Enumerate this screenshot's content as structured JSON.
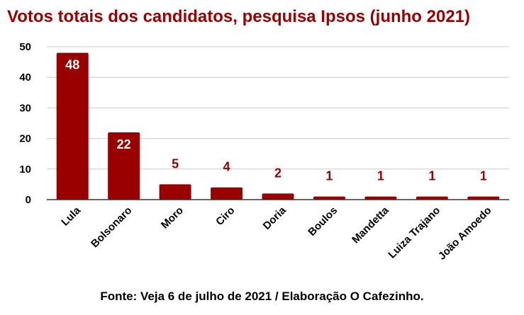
{
  "chart_data": {
    "type": "bar",
    "title": "Votos totais dos candidatos, pesquisa Ipsos (junho 2021)",
    "categories": [
      "Lula",
      "Bolsonaro",
      "Moro",
      "Ciro",
      "Doria",
      "Boulos",
      "Mandetta",
      "Luiza Trajano",
      "João Amoedo"
    ],
    "values": [
      48,
      22,
      5,
      4,
      2,
      1,
      1,
      1,
      1
    ],
    "ylim": [
      0,
      50
    ],
    "yticks": [
      0,
      10,
      20,
      30,
      40,
      50
    ],
    "grid": true,
    "legend": "none",
    "xlabel": "",
    "ylabel": "",
    "bar_color": "#990000",
    "label_inside_color": "#ffffff",
    "label_outside_color": "#990000"
  },
  "source": "Fonte: Veja 6 de julho de 2021 / Elaboração O Cafezinho."
}
